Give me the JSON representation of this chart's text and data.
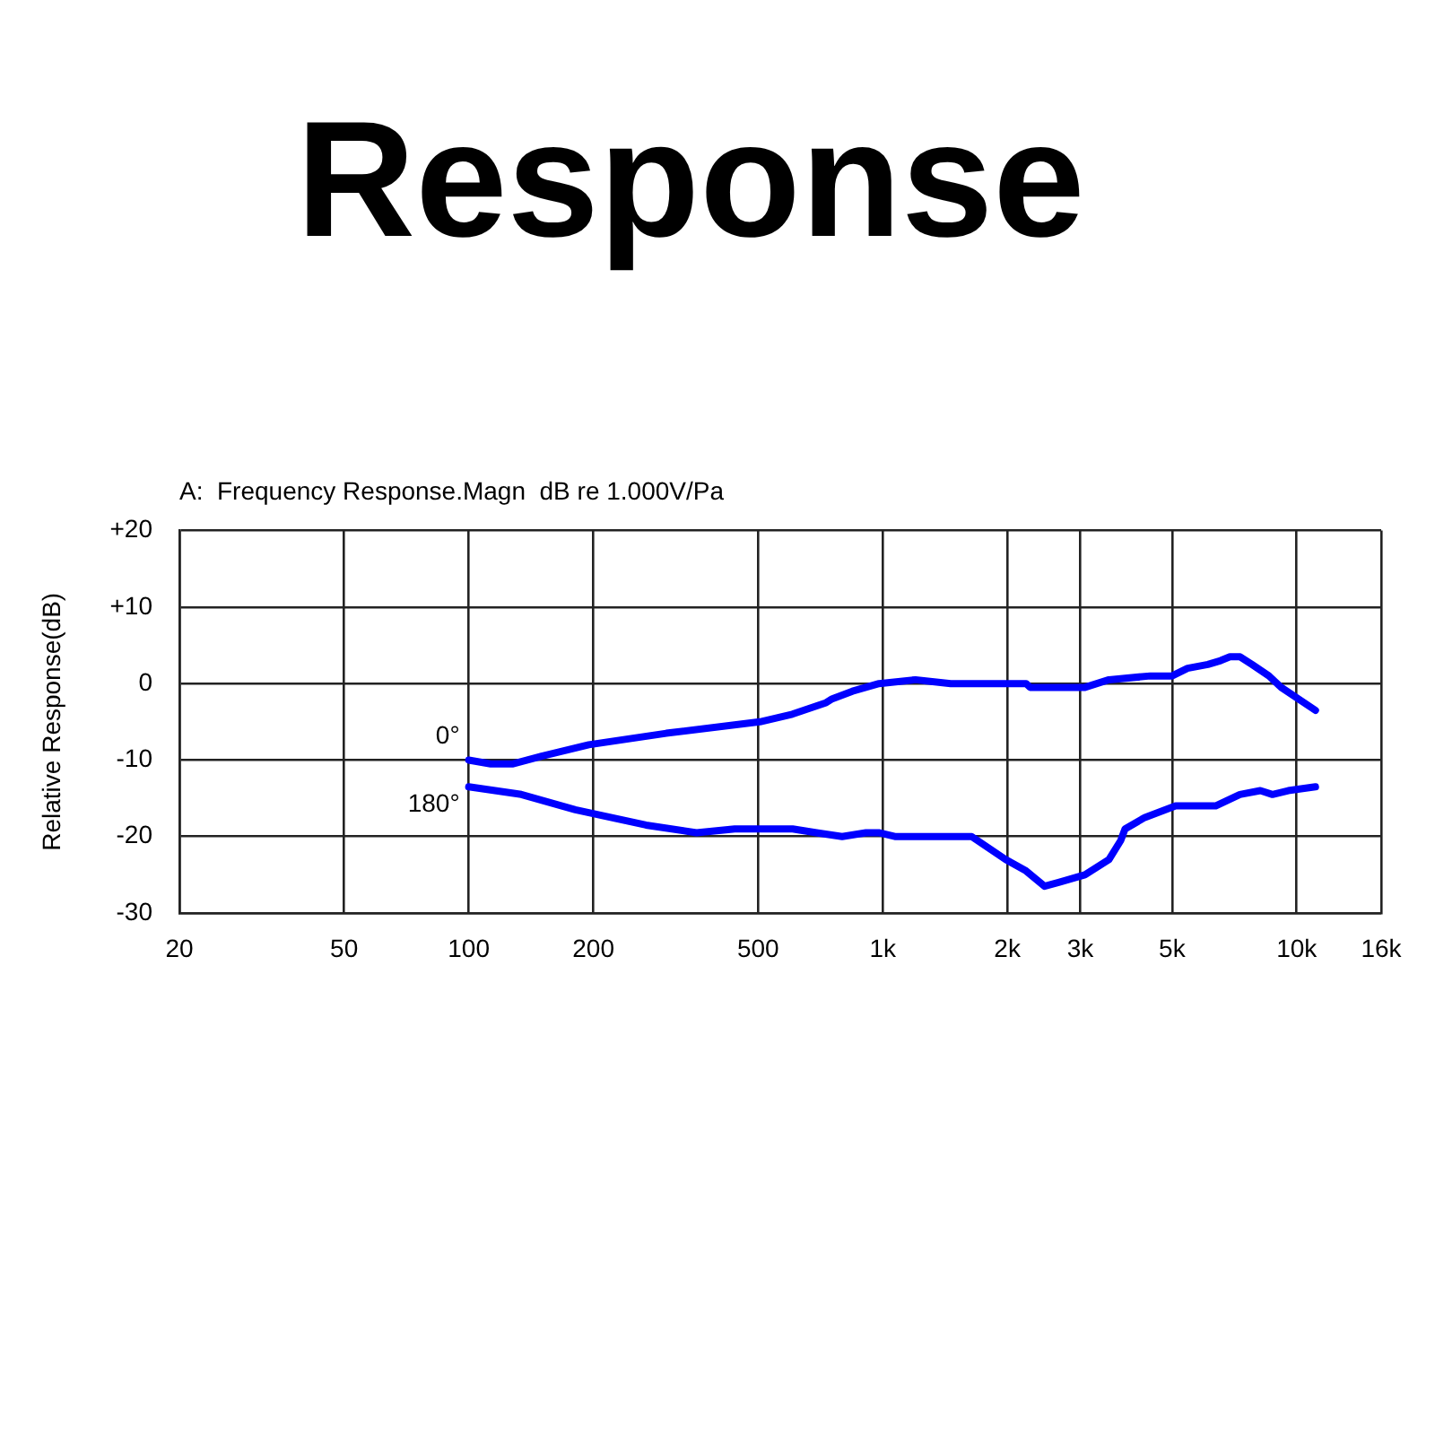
{
  "chart_data": {
    "type": "line",
    "title": "Response",
    "subtitle": "A:  Frequency Response.Magn  dB re 1.000V/Pa",
    "ylabel": "Relative Response(dB)",
    "series": [
      {
        "name": "0°",
        "color": "#0000ff",
        "x": [
          100,
          113,
          128,
          150,
          195,
          300,
          505,
          605,
          730,
          755,
          845,
          910,
          980,
          1200,
          1460,
          2220,
          2270,
          3080,
          3520,
          4430,
          5000,
          5450,
          6100,
          6550,
          6900,
          7300,
          7800,
          8570,
          9170,
          11100
        ],
        "values": [
          -10,
          -10.5,
          -10.5,
          -9.5,
          -8,
          -6.5,
          -5,
          -4,
          -2.5,
          -2,
          -1,
          -0.5,
          0,
          0.5,
          0,
          0,
          -0.5,
          -0.5,
          0.5,
          1,
          1,
          2,
          2.5,
          3,
          3.5,
          3.5,
          2.5,
          1,
          -0.5,
          -3.5
        ]
      },
      {
        "name": "180°",
        "color": "#0000ff",
        "x": [
          100,
          134,
          181,
          268,
          355,
          439,
          606,
          692,
          798,
          911,
          978,
          1070,
          1640,
          1980,
          2220,
          2460,
          2660,
          3080,
          3520,
          3760,
          3850,
          4300,
          5100,
          6370,
          7290,
          8170,
          8740,
          9540,
          11100
        ],
        "values": [
          -13.5,
          -14.5,
          -16.5,
          -18.5,
          -19.5,
          -19,
          -19,
          -19.5,
          -20,
          -19.5,
          -19.5,
          -20,
          -20,
          -23,
          -24.5,
          -26.5,
          -26,
          -25,
          -23,
          -20.5,
          -19,
          -17.5,
          -16,
          -16,
          -14.5,
          -14,
          -14.5,
          -14,
          -13.5
        ]
      }
    ],
    "xlim": [
      20,
      16000
    ],
    "xticks": [
      20,
      50,
      100,
      200,
      500,
      {
        "value": 1000,
        "label": "1k"
      },
      {
        "value": 2000,
        "label": "2k"
      },
      {
        "value": 3000,
        "label": "3k"
      },
      {
        "value": 5000,
        "label": "5k"
      },
      {
        "value": 10000,
        "label": "10k"
      },
      {
        "value": 16000,
        "label": "16k"
      }
    ],
    "ylim": [
      -30,
      20
    ],
    "yticks": [
      -30,
      -20,
      -10,
      0,
      {
        "value": 10,
        "label": "+10"
      },
      {
        "value": 20,
        "label": "+20"
      }
    ],
    "log": "x",
    "grid": true
  }
}
